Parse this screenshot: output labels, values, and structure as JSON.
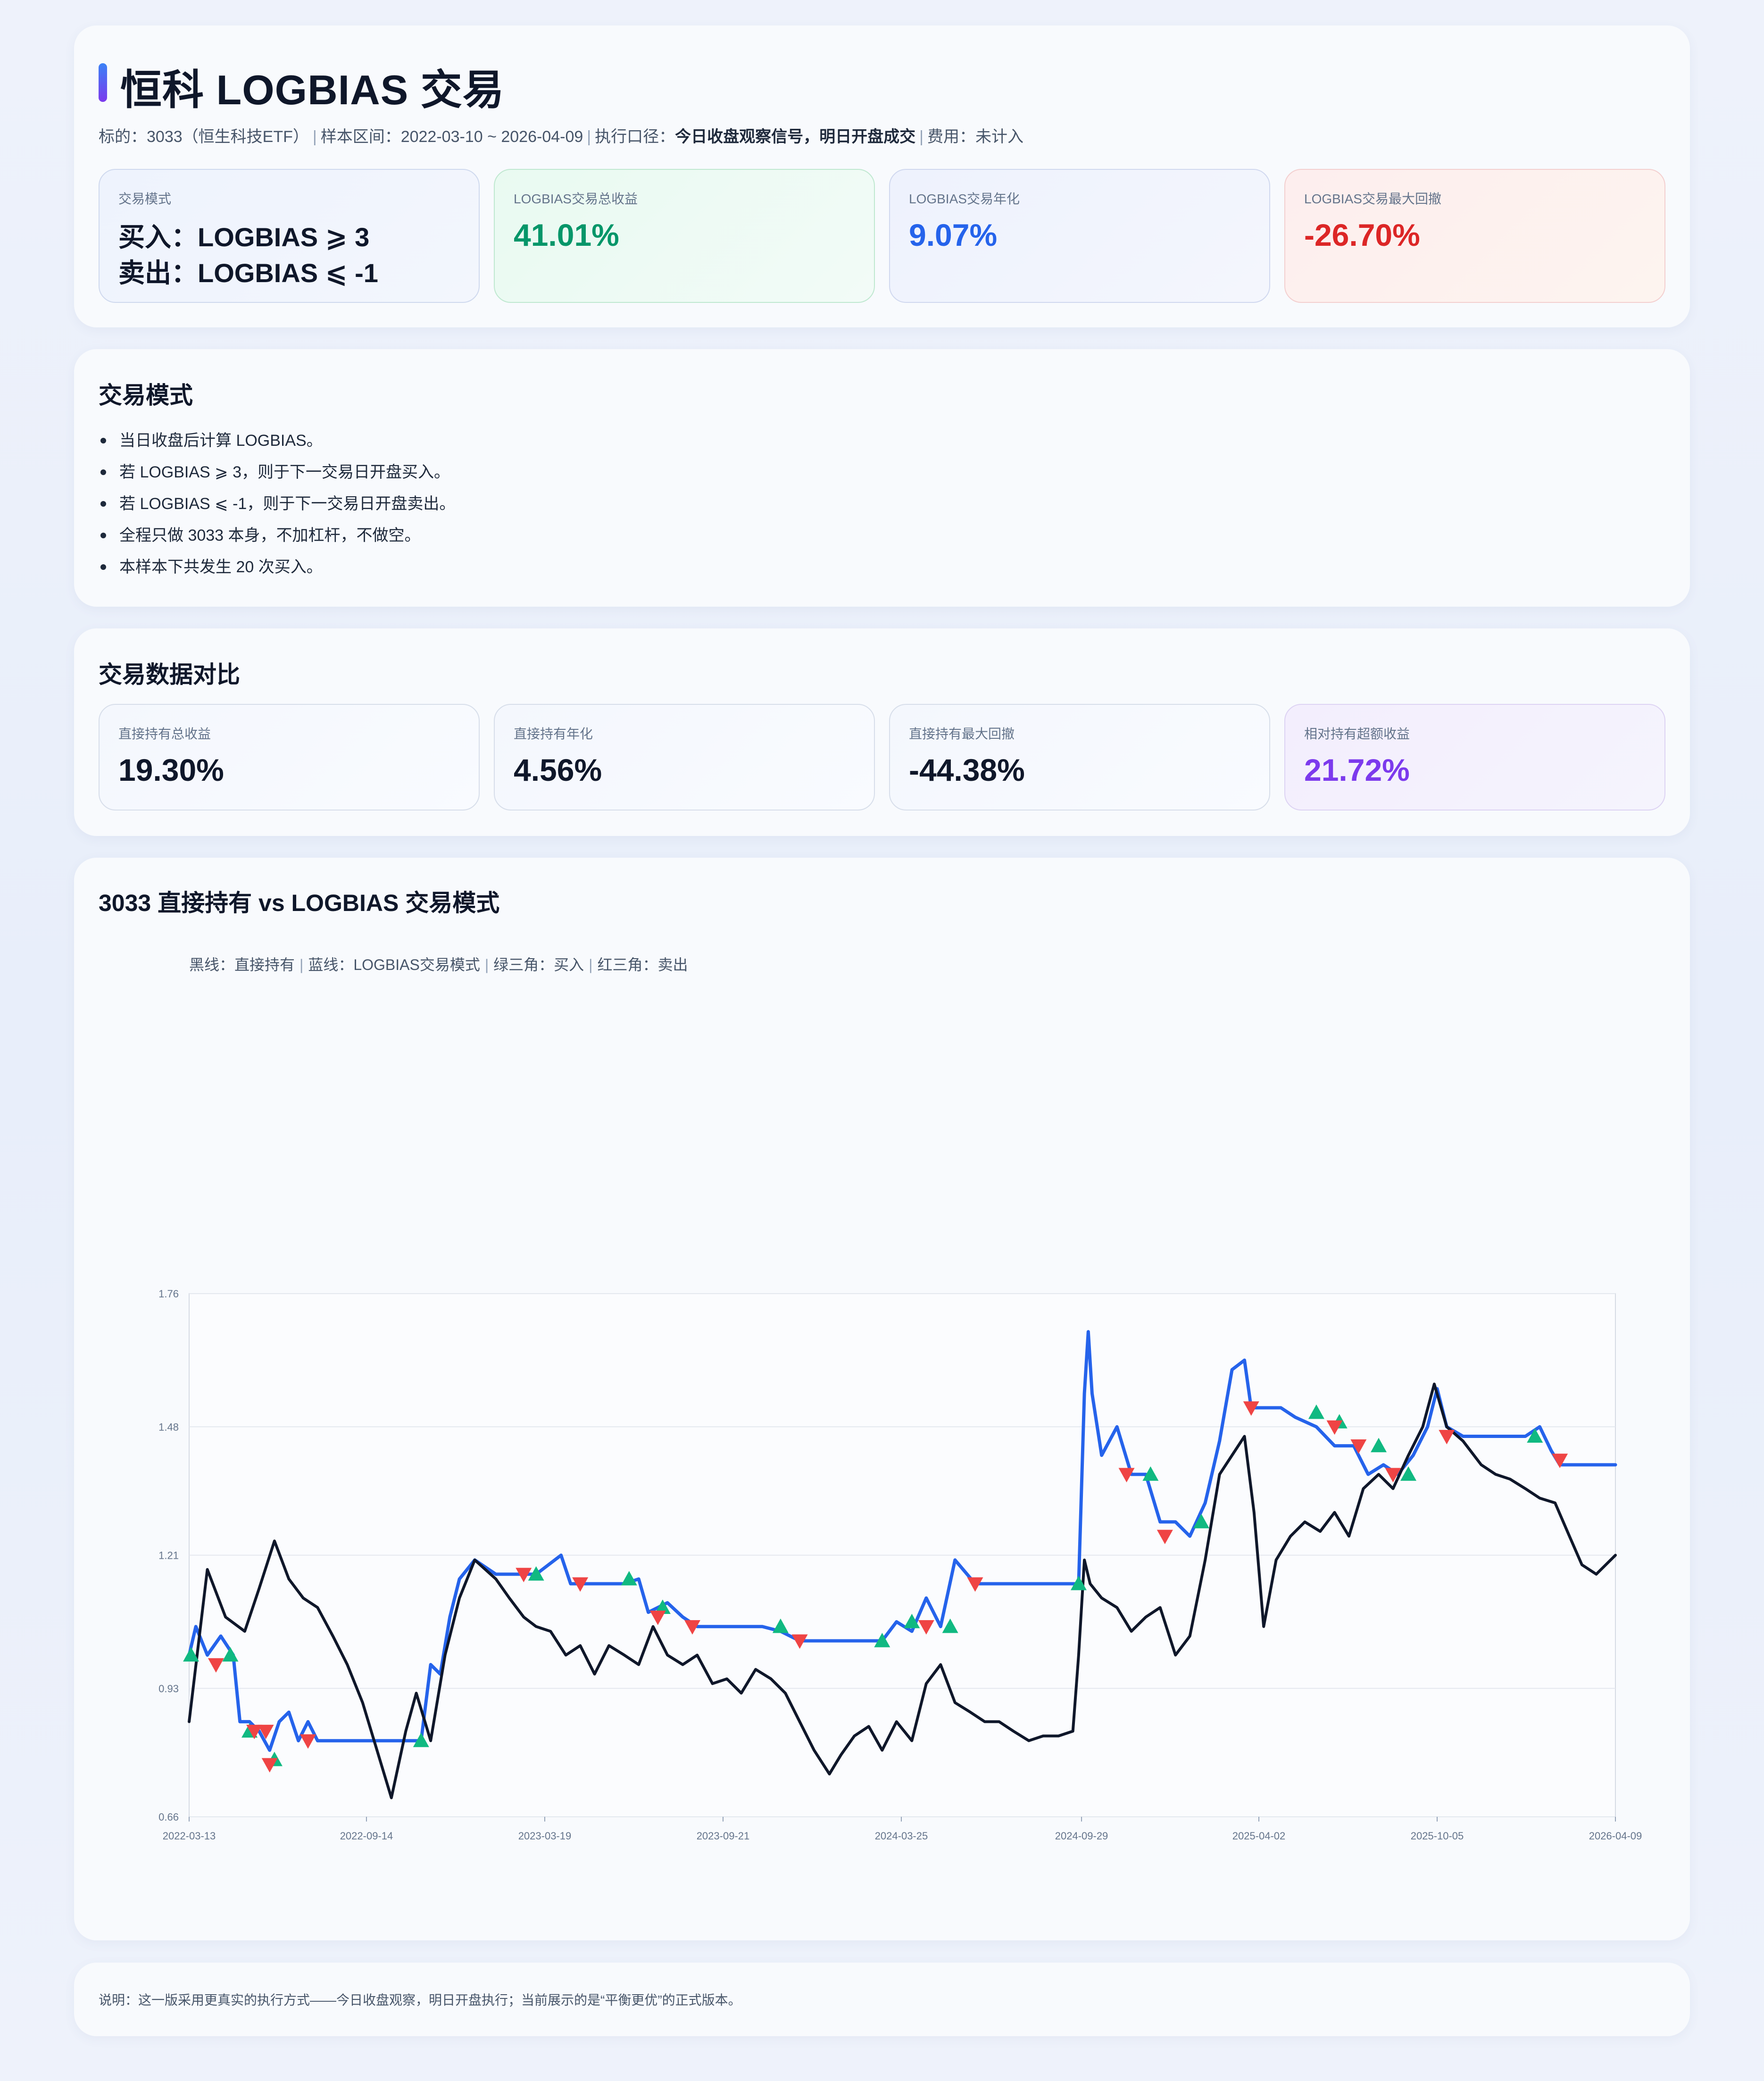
{
  "header": {
    "title": "恒科 LOGBIAS 交易",
    "meta": {
      "target": "标的：3033（恒生科技ETF）",
      "range": "样本区间：2022-03-10 ~ 2026-04-09",
      "exec_label": "执行口径：",
      "exec_value": "今日收盘观察信号，明日开盘成交",
      "fee": "费用：未计入"
    },
    "kpis": {
      "mode_label": "交易模式",
      "buy_rule": "买入：LOGBIAS ⩾ 3",
      "sell_rule": "卖出：LOGBIAS ⩽ -1",
      "total_return_label": "LOGBIAS交易总收益",
      "total_return": "41.01%",
      "annual_label": "LOGBIAS交易年化",
      "annual": "9.07%",
      "max_dd_label": "LOGBIAS交易最大回撤",
      "max_dd": "-26.70%"
    }
  },
  "mode_section": {
    "title": "交易模式",
    "items": [
      "当日收盘后计算 LOGBIAS。",
      "若 LOGBIAS ⩾ 3，则于下一交易日开盘买入。",
      "若 LOGBIAS ⩽ -1，则于下一交易日开盘卖出。",
      "全程只做 3033 本身，不加杠杆，不做空。",
      "本样本下共发生 20 次买入。"
    ]
  },
  "compare_section": {
    "title": "交易数据对比",
    "hold_return_label": "直接持有总收益",
    "hold_return": "19.30%",
    "hold_annual_label": "直接持有年化",
    "hold_annual": "4.56%",
    "hold_dd_label": "直接持有最大回撤",
    "hold_dd": "-44.38%",
    "excess_label": "相对持有超额收益",
    "excess": "21.72%"
  },
  "chart_section": {
    "title": "3033 直接持有 vs LOGBIAS 交易模式",
    "legend": [
      "黑线：直接持有",
      "蓝线：LOGBIAS交易模式",
      "绿三角：买入",
      "红三角：卖出"
    ]
  },
  "note": "说明：这一版采用更真实的执行方式——今日收盘观察，明日开盘执行；当前展示的是“平衡更优”的正式版本。",
  "colors": {
    "hold": "#0f172a",
    "strategy": "#2563eb",
    "buy": "#10b981",
    "sell": "#ef4444",
    "green_value": "#059669",
    "blue_value": "#2563eb",
    "red_value": "#dc2626",
    "purple_value": "#7c3aed"
  },
  "chart_data": {
    "type": "line",
    "x_type": "date",
    "xlim": [
      "2022-03-13",
      "2026-04-09"
    ],
    "ylim": [
      0.66,
      1.76
    ],
    "xticks": [
      "2022-03-13",
      "2022-09-14",
      "2023-03-19",
      "2023-09-21",
      "2024-03-25",
      "2024-09-29",
      "2025-04-02",
      "2025-10-05",
      "2026-04-09"
    ],
    "yticks": [
      "0.66",
      "0.93",
      "1.21",
      "1.48",
      "1.76"
    ],
    "grid": true,
    "series": [
      {
        "name": "直接持有",
        "x": [
          "2022-03-13",
          "2022-04-01",
          "2022-04-20",
          "2022-05-10",
          "2022-05-25",
          "2022-06-10",
          "2022-06-25",
          "2022-07-10",
          "2022-07-25",
          "2022-08-10",
          "2022-08-25",
          "2022-09-10",
          "2022-09-25",
          "2022-10-10",
          "2022-10-25",
          "2022-11-05",
          "2022-11-20",
          "2022-12-05",
          "2022-12-20",
          "2023-01-05",
          "2023-01-27",
          "2023-02-10",
          "2023-02-25",
          "2023-03-10",
          "2023-03-25",
          "2023-04-10",
          "2023-04-25",
          "2023-05-10",
          "2023-05-25",
          "2023-06-10",
          "2023-06-25",
          "2023-07-10",
          "2023-07-25",
          "2023-08-10",
          "2023-08-25",
          "2023-09-10",
          "2023-09-25",
          "2023-10-10",
          "2023-10-25",
          "2023-11-10",
          "2023-11-25",
          "2023-12-10",
          "2023-12-25",
          "2024-01-10",
          "2024-01-22",
          "2024-02-05",
          "2024-02-20",
          "2024-03-05",
          "2024-03-20",
          "2024-04-05",
          "2024-04-20",
          "2024-05-05",
          "2024-05-20",
          "2024-06-05",
          "2024-06-20",
          "2024-07-05",
          "2024-07-20",
          "2024-08-05",
          "2024-08-20",
          "2024-09-05",
          "2024-09-20",
          "2024-09-26",
          "2024-10-02",
          "2024-10-08",
          "2024-10-20",
          "2024-11-05",
          "2024-11-20",
          "2024-12-05",
          "2024-12-20",
          "2025-01-05",
          "2025-01-20",
          "2025-02-05",
          "2025-02-20",
          "2025-03-05",
          "2025-03-18",
          "2025-03-28",
          "2025-04-07",
          "2025-04-20",
          "2025-05-05",
          "2025-05-20",
          "2025-06-05",
          "2025-06-20",
          "2025-07-05",
          "2025-07-20",
          "2025-08-05",
          "2025-08-20",
          "2025-09-05",
          "2025-09-20",
          "2025-10-02",
          "2025-10-15",
          "2025-11-01",
          "2025-11-20",
          "2025-12-05",
          "2025-12-20",
          "2026-01-05",
          "2026-01-20",
          "2026-02-05",
          "2026-02-20",
          "2026-03-05",
          "2026-03-20",
          "2026-04-09"
        ],
        "y": [
          0.86,
          1.18,
          1.08,
          1.05,
          1.14,
          1.24,
          1.16,
          1.12,
          1.1,
          1.04,
          0.98,
          0.9,
          0.8,
          0.7,
          0.84,
          0.92,
          0.82,
          1.0,
          1.12,
          1.2,
          1.16,
          1.12,
          1.08,
          1.06,
          1.05,
          1.0,
          1.02,
          0.96,
          1.02,
          1.0,
          0.98,
          1.06,
          1.0,
          0.98,
          1.0,
          0.94,
          0.95,
          0.92,
          0.97,
          0.95,
          0.92,
          0.86,
          0.8,
          0.75,
          0.79,
          0.83,
          0.85,
          0.8,
          0.86,
          0.82,
          0.94,
          0.98,
          0.9,
          0.88,
          0.86,
          0.86,
          0.84,
          0.82,
          0.83,
          0.83,
          0.84,
          1.0,
          1.2,
          1.15,
          1.12,
          1.1,
          1.05,
          1.08,
          1.1,
          1.0,
          1.04,
          1.2,
          1.38,
          1.42,
          1.46,
          1.3,
          1.06,
          1.2,
          1.25,
          1.28,
          1.26,
          1.3,
          1.25,
          1.35,
          1.38,
          1.35,
          1.42,
          1.48,
          1.57,
          1.48,
          1.45,
          1.4,
          1.38,
          1.37,
          1.35,
          1.33,
          1.32,
          1.25,
          1.19,
          1.17,
          1.21
        ]
      },
      {
        "name": "LOGBIAS交易模式",
        "x": [
          "2022-03-13",
          "2022-03-20",
          "2022-04-01",
          "2022-04-15",
          "2022-04-28",
          "2022-05-05",
          "2022-05-15",
          "2022-05-25",
          "2022-06-05",
          "2022-06-15",
          "2022-06-25",
          "2022-07-05",
          "2022-07-15",
          "2022-07-25",
          "2022-08-15",
          "2022-09-15",
          "2022-10-15",
          "2022-11-10",
          "2022-11-20",
          "2022-11-30",
          "2022-12-10",
          "2022-12-20",
          "2023-01-05",
          "2023-01-27",
          "2023-02-10",
          "2023-03-10",
          "2023-04-05",
          "2023-04-15",
          "2023-05-05",
          "2023-06-10",
          "2023-06-25",
          "2023-07-05",
          "2023-07-25",
          "2023-08-10",
          "2023-08-25",
          "2023-09-10",
          "2023-10-05",
          "2023-11-01",
          "2023-11-20",
          "2023-12-10",
          "2024-01-10",
          "2024-02-05",
          "2024-02-20",
          "2024-03-05",
          "2024-03-20",
          "2024-04-05",
          "2024-04-20",
          "2024-05-05",
          "2024-05-20",
          "2024-06-10",
          "2024-07-15",
          "2024-08-20",
          "2024-09-26",
          "2024-10-02",
          "2024-10-06",
          "2024-10-10",
          "2024-10-20",
          "2024-11-05",
          "2024-11-20",
          "2024-12-05",
          "2024-12-20",
          "2025-01-05",
          "2025-01-20",
          "2025-02-05",
          "2025-02-20",
          "2025-03-05",
          "2025-03-18",
          "2025-03-25",
          "2025-04-10",
          "2025-04-25",
          "2025-05-10",
          "2025-06-01",
          "2025-06-20",
          "2025-07-10",
          "2025-07-25",
          "2025-08-10",
          "2025-08-25",
          "2025-09-10",
          "2025-09-25",
          "2025-10-05",
          "2025-10-15",
          "2025-11-01",
          "2025-12-01",
          "2026-01-05",
          "2026-01-20",
          "2026-02-01",
          "2026-02-10",
          "2026-04-09"
        ],
        "y": [
          1.0,
          1.06,
          1.0,
          1.04,
          1.0,
          0.86,
          0.86,
          0.84,
          0.8,
          0.86,
          0.88,
          0.82,
          0.86,
          0.82,
          0.82,
          0.82,
          0.82,
          0.82,
          0.98,
          0.96,
          1.08,
          1.16,
          1.2,
          1.17,
          1.17,
          1.17,
          1.21,
          1.15,
          1.15,
          1.15,
          1.16,
          1.09,
          1.11,
          1.08,
          1.06,
          1.06,
          1.06,
          1.06,
          1.05,
          1.03,
          1.03,
          1.03,
          1.03,
          1.03,
          1.07,
          1.05,
          1.12,
          1.06,
          1.2,
          1.15,
          1.15,
          1.15,
          1.15,
          1.55,
          1.68,
          1.55,
          1.42,
          1.48,
          1.38,
          1.38,
          1.28,
          1.28,
          1.25,
          1.32,
          1.45,
          1.6,
          1.62,
          1.52,
          1.52,
          1.52,
          1.5,
          1.48,
          1.44,
          1.44,
          1.38,
          1.4,
          1.38,
          1.42,
          1.48,
          1.56,
          1.48,
          1.46,
          1.46,
          1.46,
          1.48,
          1.43,
          1.4,
          1.4
        ]
      }
    ],
    "buy_signals": [
      {
        "x": "2022-03-15",
        "y": 1.0
      },
      {
        "x": "2022-04-25",
        "y": 1.0
      },
      {
        "x": "2022-05-15",
        "y": 0.84
      },
      {
        "x": "2022-06-10",
        "y": 0.78
      },
      {
        "x": "2022-11-10",
        "y": 0.82
      },
      {
        "x": "2023-03-10",
        "y": 1.17
      },
      {
        "x": "2023-06-15",
        "y": 1.16
      },
      {
        "x": "2023-07-20",
        "y": 1.1
      },
      {
        "x": "2023-11-20",
        "y": 1.06
      },
      {
        "x": "2024-03-05",
        "y": 1.03
      },
      {
        "x": "2024-04-05",
        "y": 1.07
      },
      {
        "x": "2024-05-15",
        "y": 1.06
      },
      {
        "x": "2024-09-26",
        "y": 1.15
      },
      {
        "x": "2024-12-10",
        "y": 1.38
      },
      {
        "x": "2025-02-01",
        "y": 1.28
      },
      {
        "x": "2025-06-01",
        "y": 1.51
      },
      {
        "x": "2025-06-25",
        "y": 1.49
      },
      {
        "x": "2025-08-05",
        "y": 1.44
      },
      {
        "x": "2025-09-05",
        "y": 1.38
      },
      {
        "x": "2026-01-15",
        "y": 1.46
      }
    ],
    "sell_signals": [
      {
        "x": "2022-04-10",
        "y": 0.98
      },
      {
        "x": "2022-05-20",
        "y": 0.84
      },
      {
        "x": "2022-06-01",
        "y": 0.84
      },
      {
        "x": "2022-06-05",
        "y": 0.77
      },
      {
        "x": "2022-07-15",
        "y": 0.82
      },
      {
        "x": "2023-02-25",
        "y": 1.17
      },
      {
        "x": "2023-04-25",
        "y": 1.15
      },
      {
        "x": "2023-07-15",
        "y": 1.08
      },
      {
        "x": "2023-08-20",
        "y": 1.06
      },
      {
        "x": "2023-12-10",
        "y": 1.03
      },
      {
        "x": "2024-04-20",
        "y": 1.06
      },
      {
        "x": "2024-06-10",
        "y": 1.15
      },
      {
        "x": "2024-11-15",
        "y": 1.38
      },
      {
        "x": "2024-12-25",
        "y": 1.25
      },
      {
        "x": "2025-03-25",
        "y": 1.52
      },
      {
        "x": "2025-06-20",
        "y": 1.48
      },
      {
        "x": "2025-07-15",
        "y": 1.44
      },
      {
        "x": "2025-08-20",
        "y": 1.38
      },
      {
        "x": "2025-10-15",
        "y": 1.46
      },
      {
        "x": "2026-02-10",
        "y": 1.41
      }
    ]
  }
}
